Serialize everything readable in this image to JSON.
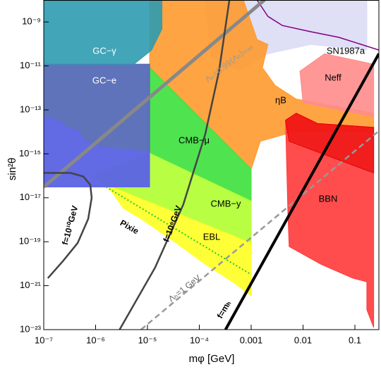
{
  "chart_data": {
    "type": "region",
    "x_label": "mφ [GeV]",
    "y_label": "sin²θ",
    "log_x": true,
    "log_y": true,
    "xlim": [
      1e-07,
      0.29
    ],
    "ylim": [
      1e-23,
      1e-08
    ],
    "xticks": [
      {
        "value": 1e-07,
        "label": "10⁻⁷"
      },
      {
        "value": 1e-06,
        "label": "10⁻⁶"
      },
      {
        "value": 1e-05,
        "label": "10⁻⁵"
      },
      {
        "value": 0.0001,
        "label": "10⁻⁴"
      },
      0.001,
      0.01,
      0.1
    ],
    "yticks": [
      {
        "value": 1e-09,
        "label": "10⁻⁹"
      },
      {
        "value": 1e-11,
        "label": "10⁻¹¹"
      },
      {
        "value": 1e-13,
        "label": "10⁻¹³"
      },
      {
        "value": 1e-15,
        "label": "10⁻¹⁵"
      },
      {
        "value": 1e-17,
        "label": "10⁻¹⁷"
      },
      {
        "value": 1e-19,
        "label": "10⁻¹⁹"
      },
      {
        "value": 1e-21,
        "label": "10⁻²¹"
      },
      {
        "value": 1e-23,
        "label": "10⁻²³"
      }
    ],
    "regions": [
      {
        "name": "SN1987a",
        "color": "#dcdcf5",
        "x": [
          0.00013,
          0.17,
          0.17,
          0.014,
          0.0021,
          0.0006,
          0.00017
        ],
        "y": [
          1e-08,
          1e-08,
          5.3e-11,
          9.5e-11,
          3.6e-11,
          5.8e-12,
          2.5e-11
        ]
      },
      {
        "name": "ηB",
        "color": "#ff9a2e",
        "x": [
          1.1e-05,
          0.00071,
          0.0013,
          0.0021,
          0.00165,
          0.0029,
          0.0074,
          0.23,
          0.23,
          0.0074,
          0.0015,
          0.001,
          1.1e-05
        ],
        "y": [
          1e-08,
          1e-08,
          1.6e-10,
          9.5e-11,
          8.3e-12,
          1.3e-12,
          3.1e-13,
          7.1e-14,
          1.1e-14,
          1.1e-14,
          3.7e-15,
          2e-16,
          8.3e-12
        ]
      },
      {
        "name": "CMB−μ",
        "color": "#3de03d",
        "x": [
          1.1e-05,
          0.001,
          0.001,
          1.1e-05
        ],
        "y": [
          8.3e-12,
          2e-16,
          7.1e-18,
          1.07e-15
        ]
      },
      {
        "name": "CMB−y",
        "color": "#b0ff30",
        "x": [
          1.1e-05,
          0.001,
          0.001,
          1.6e-06,
          8.4e-07
        ],
        "y": [
          1.07e-15,
          7.1e-18,
          8.7e-20,
          3.9e-17,
          9.3e-17
        ]
      },
      {
        "name": "EBL",
        "color": "#ffff22",
        "x": [
          1.6e-06,
          0.001,
          0.001,
          0.00044,
          0.00013,
          3.6e-05,
          7.5e-06,
          3.4e-06,
          2.2e-06
        ],
        "y": [
          3.9e-17,
          8.7e-20,
          3.5e-22,
          1.5e-21,
          9.5e-21,
          8.7e-20,
          1.1e-18,
          3.4e-18,
          1.5e-17
        ]
      },
      {
        "name": "GC−e",
        "color": "#4e64b4",
        "x": [
          1e-07,
          1.1e-05,
          1.1e-05,
          1e-07
        ],
        "y": [
          1.2e-11,
          1.2e-11,
          3.1e-17,
          3.1e-17
        ]
      },
      {
        "color": "#6464ff",
        "x": [
          1e-07,
          1.8e-07,
          2.8e-07,
          4.5e-07,
          6.2e-07,
          1.6e-06,
          1.1e-05,
          1.1e-05,
          1e-07
        ],
        "y": [
          4.9e-14,
          3.4e-14,
          1.6e-14,
          1.1e-14,
          3.7e-15,
          1.8e-15,
          1.2e-15,
          3.1e-17,
          3.1e-17
        ]
      },
      {
        "name": "GC−γ",
        "color": "#2e9bb0",
        "x": [
          1e-07,
          1.9e-05,
          1.9e-05,
          1.2e-05,
          5.5e-06,
          1e-07
        ],
        "y": [
          1e-08,
          1e-08,
          4.8e-10,
          5.3e-11,
          1.2e-11,
          1.2e-11
        ]
      },
      {
        "name": "Neff",
        "color": "#ff8c8c",
        "x": [
          0.0087,
          0.026,
          0.23,
          0.23,
          0.01
        ],
        "y": [
          5.8e-12,
          3.6e-11,
          1.2e-11,
          4.9e-14,
          2.1e-13
        ]
      },
      {
        "name": "BBN",
        "color": "#ff3a3a",
        "x": [
          0.0046,
          0.0074,
          0.019,
          0.23,
          0.23,
          0.17,
          0.17,
          0.091,
          0.022,
          0.0054,
          0.0051
        ],
        "y": [
          3.4e-14,
          7.1e-14,
          2.4e-14,
          1.6e-14,
          1.26e-23,
          8e-23,
          1.5e-21,
          2.2e-21,
          9.5e-21,
          6e-20,
          2.3e-18
        ]
      },
      {
        "color": "#e80000",
        "x": [
          0.0046,
          0.0074,
          0.019,
          0.23,
          0.23,
          0.0054
        ],
        "y": [
          3.4e-14,
          7.1e-14,
          2.4e-14,
          1.6e-14,
          1.35e-16,
          3.7e-15
        ]
      }
    ],
    "lines": [
      {
        "color": "#800080",
        "x": [
          0.0013,
          0.0021,
          0.004,
          0.014,
          0.049,
          0.29
        ],
        "y": [
          1e-08,
          1.8e-09,
          6.9e-10,
          3.6e-10,
          2e-10,
          5.3e-11
        ]
      },
      {
        "label": "Λₕ=0.99⟨Λₕ⟩ₘₐₓ",
        "color": "#888888",
        "x": [
          1e-07,
          0.0018
        ],
        "y": [
          3.1e-17,
          1e-08
        ]
      },
      {
        "label": "Pixie",
        "color": "#22cc22",
        "dashed": "dotted",
        "x": [
          1.6e-06,
          0.001
        ],
        "y": [
          3.1e-17,
          3.2e-21
        ]
      },
      {
        "label": "f=10¹⁰GeV",
        "color": "#444444",
        "x": [
          1e-07,
          3.3e-07,
          5.8e-07,
          7.9e-07,
          8.4e-07,
          7.2e-07,
          4.5e-07,
          2.4e-07,
          1.2e-07
        ],
        "y": [
          1.35e-16,
          1.35e-16,
          9.3e-17,
          3.9e-17,
          1e-17,
          1.1e-18,
          8.7e-20,
          1.4e-20,
          2.2e-21
        ]
      },
      {
        "label": "f=10⁸GeV",
        "color": "#444444",
        "x": [
          2.9e-06,
          1.4e-05,
          4.9e-05,
          0.00013,
          0.00024,
          0.00038
        ],
        "y": [
          1e-23,
          6.6e-21,
          4.9e-18,
          7.8e-15,
          5.8e-12,
          1e-08
        ]
      },
      {
        "label": "Λₕ=1 GeV",
        "color": "#999999",
        "dashed": "dashed",
        "x": [
          7.5e-06,
          0.29
        ],
        "y": [
          1e-23,
          1.1e-14
        ]
      },
      {
        "label": "f=mₕ",
        "color": "#000000",
        "x": [
          0.00032,
          0.29
        ],
        "y": [
          1e-23,
          3.6e-11
        ]
      }
    ]
  }
}
